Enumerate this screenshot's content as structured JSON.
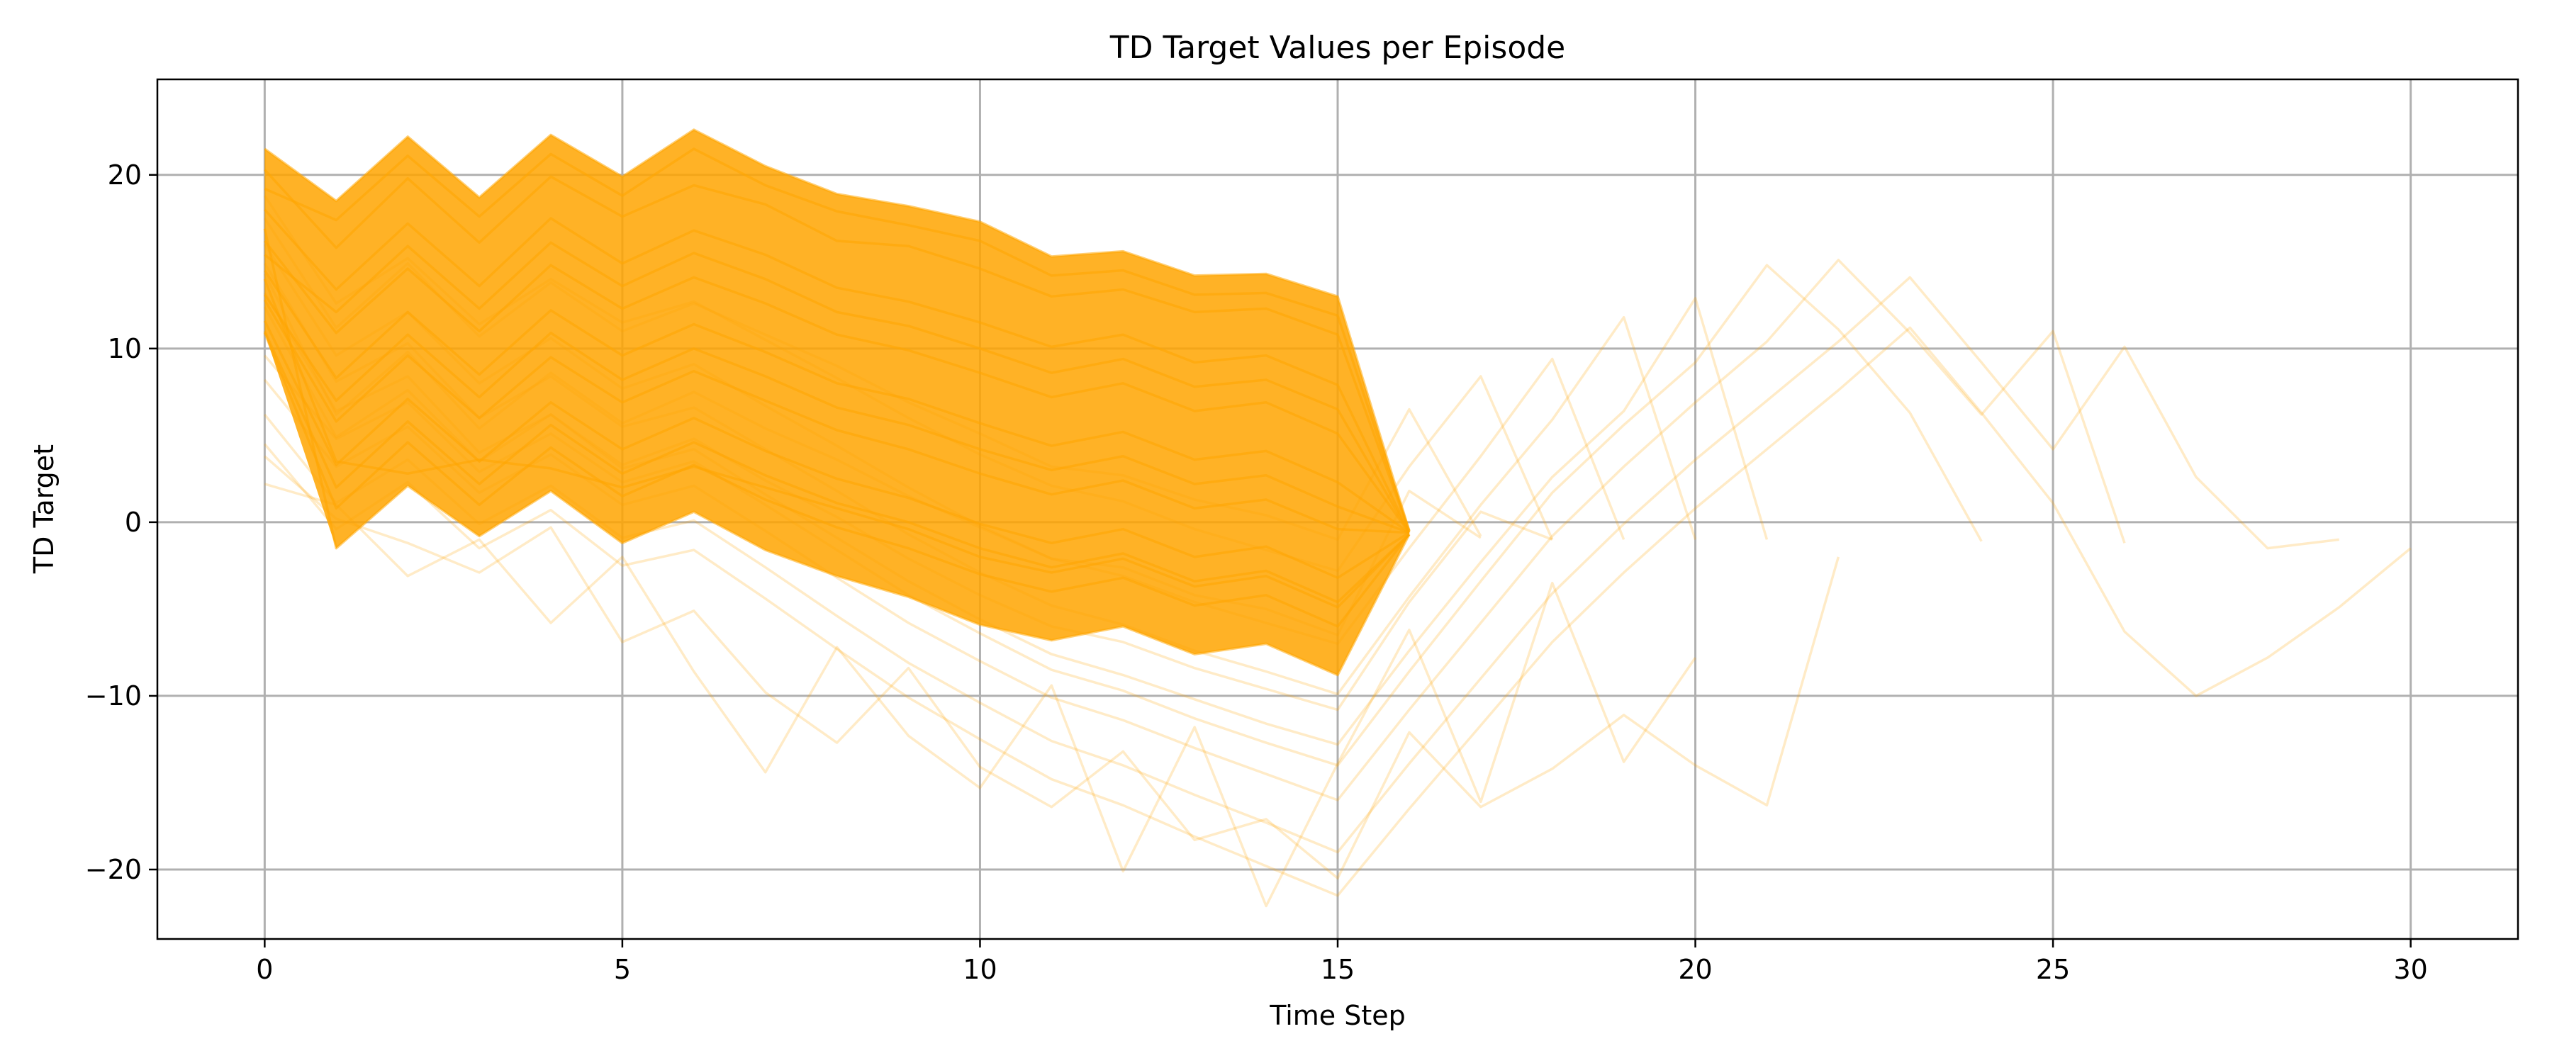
{
  "chart_data": {
    "type": "line",
    "title": "TD Target Values per Episode",
    "xlabel": "Time Step",
    "ylabel": "TD Target",
    "xlim": [
      -1.5,
      31.5
    ],
    "ylim": [
      -24,
      25.5
    ],
    "xticks": [
      0,
      5,
      10,
      15,
      20,
      25,
      30
    ],
    "yticks": [
      -20,
      -10,
      0,
      10,
      20
    ],
    "xtick_labels": [
      "0",
      "5",
      "10",
      "15",
      "20",
      "25",
      "30"
    ],
    "ytick_labels": [
      "−20",
      "−10",
      "0",
      "10",
      "20"
    ],
    "grid": true,
    "legend": "none",
    "series_color": "#FFA500",
    "series_opacity": 0.1,
    "series": [
      {
        "x": [
          0,
          1,
          2,
          3,
          4,
          5,
          6,
          7,
          8,
          9,
          10,
          11,
          12,
          13,
          14,
          15,
          16
        ],
        "y": [
          21.5,
          18.5,
          22.2,
          18.7,
          22.3,
          19.9,
          22.6,
          20.5,
          18.9,
          18.2,
          17.3,
          15.3,
          15.6,
          14.2,
          14.3,
          13.0,
          -0.5
        ]
      },
      {
        "x": [
          0,
          1,
          2,
          3,
          4,
          5,
          6,
          7,
          8,
          9,
          10,
          11,
          12,
          13,
          14,
          15,
          16
        ],
        "y": [
          20.3,
          15.8,
          19.8,
          16.1,
          19.9,
          17.6,
          19.4,
          18.3,
          16.2,
          15.9,
          14.6,
          13.0,
          13.4,
          12.1,
          12.3,
          10.8,
          -0.5
        ]
      },
      {
        "x": [
          0,
          1,
          2,
          3,
          4,
          5,
          6,
          7,
          8,
          9,
          10,
          11,
          12,
          13,
          14,
          15,
          16
        ],
        "y": [
          18.0,
          13.4,
          17.2,
          13.6,
          17.5,
          14.9,
          16.8,
          15.4,
          13.5,
          12.7,
          11.5,
          10.1,
          10.8,
          9.2,
          9.6,
          7.9,
          -0.6
        ]
      },
      {
        "x": [
          0,
          1,
          2,
          3,
          4,
          5,
          6,
          7,
          8,
          9,
          10,
          11,
          12,
          13,
          14,
          15,
          16
        ],
        "y": [
          16.2,
          10.9,
          14.6,
          11.0,
          14.8,
          12.3,
          14.1,
          12.6,
          10.8,
          9.9,
          8.6,
          7.2,
          8.0,
          6.4,
          6.9,
          5.1,
          -0.6
        ]
      },
      {
        "x": [
          0,
          1,
          2,
          3,
          4,
          5,
          6,
          7,
          8,
          9,
          10,
          11,
          12,
          13,
          14,
          15,
          16
        ],
        "y": [
          14.5,
          8.3,
          12.1,
          8.5,
          12.2,
          9.6,
          11.4,
          9.8,
          8.0,
          7.1,
          5.7,
          4.4,
          5.2,
          3.6,
          4.1,
          2.3,
          -0.6
        ]
      },
      {
        "x": [
          0,
          1,
          2,
          3,
          4,
          5,
          6,
          7,
          8,
          9,
          10,
          11,
          12,
          13,
          14,
          15,
          16
        ],
        "y": [
          12.8,
          5.8,
          9.6,
          6.0,
          9.5,
          6.9,
          8.7,
          7.0,
          5.3,
          4.2,
          2.8,
          1.6,
          2.4,
          0.8,
          1.3,
          -0.4,
          -0.6
        ]
      },
      {
        "x": [
          0,
          1,
          2,
          3,
          4,
          5,
          6,
          7,
          8,
          9,
          10,
          11,
          12,
          13,
          14,
          15,
          16
        ],
        "y": [
          11.6,
          3.3,
          7.1,
          3.5,
          6.9,
          4.2,
          6.0,
          4.1,
          2.5,
          1.4,
          -0.1,
          -1.2,
          -0.4,
          -2.0,
          -1.4,
          -3.2,
          -0.6
        ]
      },
      {
        "x": [
          0,
          1,
          2,
          3,
          4,
          5,
          6,
          7,
          8,
          9,
          10,
          11,
          12,
          13,
          14,
          15,
          16
        ],
        "y": [
          10.9,
          0.8,
          4.6,
          1.0,
          4.3,
          1.5,
          3.3,
          1.3,
          -0.3,
          -1.5,
          -3.0,
          -4.0,
          -3.2,
          -4.8,
          -4.2,
          -6.0,
          -0.7
        ]
      },
      {
        "x": [
          0,
          1,
          2,
          3,
          4,
          5,
          6,
          7,
          8,
          9,
          10,
          11,
          12,
          13,
          14,
          15,
          16
        ],
        "y": [
          16.9,
          -1.5,
          2.1,
          -0.8,
          1.8,
          -1.2,
          0.6,
          -1.6,
          -3.1,
          -4.3,
          -5.9,
          -6.8,
          -6.0,
          -7.6,
          -7.0,
          -8.8,
          -0.7
        ]
      },
      {
        "x": [
          0,
          1,
          2,
          3,
          4,
          5,
          6,
          7,
          8,
          9,
          10,
          11,
          12,
          13,
          14,
          15,
          16
        ],
        "y": [
          14.0,
          3.5,
          2.8,
          3.6,
          3.1,
          2.0,
          3.2,
          2.0,
          0.8,
          -0.4,
          -2.0,
          -2.9,
          -2.1,
          -3.7,
          -3.1,
          -4.9,
          -0.7
        ]
      },
      {
        "x": [
          0,
          1,
          2,
          3,
          4,
          5,
          6,
          7,
          8,
          9,
          10,
          11,
          12,
          13,
          14,
          15,
          16
        ],
        "y": [
          19.2,
          17.4,
          21.1,
          17.6,
          21.2,
          18.8,
          21.5,
          19.4,
          17.9,
          17.1,
          16.2,
          14.2,
          14.5,
          13.1,
          13.2,
          11.9,
          -0.5
        ]
      },
      {
        "x": [
          0,
          1,
          2,
          3,
          4,
          5,
          6,
          7,
          8,
          9,
          10,
          11,
          12,
          13,
          14,
          15,
          16
        ],
        "y": [
          15.4,
          12.1,
          15.9,
          12.3,
          16.1,
          13.6,
          15.5,
          14.0,
          12.1,
          11.3,
          10.0,
          8.6,
          9.4,
          7.8,
          8.2,
          6.5,
          -0.6
        ]
      },
      {
        "x": [
          0,
          1,
          2,
          3,
          4,
          5,
          6,
          7,
          8,
          9,
          10,
          11,
          12,
          13,
          14,
          15,
          16
        ],
        "y": [
          13.1,
          7.0,
          10.8,
          7.2,
          10.9,
          8.2,
          10.0,
          8.4,
          6.6,
          5.6,
          4.2,
          3.0,
          3.8,
          2.2,
          2.7,
          0.9,
          -0.6
        ]
      },
      {
        "x": [
          0,
          1,
          2,
          3,
          4,
          5,
          6,
          7,
          8,
          9,
          10,
          11,
          12,
          13,
          14,
          15,
          16
        ],
        "y": [
          11.0,
          2.0,
          5.8,
          2.2,
          5.6,
          2.8,
          4.6,
          2.7,
          1.1,
          0.0,
          -1.5,
          -2.6,
          -1.8,
          -3.4,
          -2.8,
          -4.6,
          -0.7
        ]
      },
      {
        "x": [
          0,
          1,
          2,
          3,
          4,
          5,
          6,
          7,
          8,
          9,
          10,
          11,
          12,
          13,
          14,
          15,
          16,
          17
        ],
        "y": [
          17.5,
          11.2,
          14.9,
          10.7,
          13.8,
          11.0,
          12.6,
          10.8,
          9.0,
          6.9,
          5.1,
          3.2,
          2.7,
          1.3,
          0.4,
          -1.0,
          6.5,
          -0.8
        ]
      },
      {
        "x": [
          0,
          1,
          2,
          3,
          4,
          5,
          6,
          7,
          8,
          9,
          10,
          11,
          12,
          13,
          14,
          15,
          16,
          17
        ],
        "y": [
          14.3,
          6.2,
          9.8,
          5.4,
          8.6,
          5.7,
          7.5,
          5.4,
          3.6,
          1.5,
          -0.3,
          -2.1,
          -2.6,
          -4.2,
          -5.0,
          -6.5,
          1.8,
          -0.9
        ]
      },
      {
        "x": [
          0,
          1,
          2,
          3,
          4,
          5,
          6,
          7,
          8,
          9,
          10,
          11,
          12,
          13,
          14,
          15,
          16,
          17,
          18
        ],
        "y": [
          18.8,
          12.6,
          15.2,
          11.4,
          14.0,
          11.5,
          12.7,
          10.5,
          8.3,
          6.0,
          3.9,
          2.1,
          1.2,
          -0.4,
          -1.6,
          -2.8,
          3.2,
          8.4,
          -1.0
        ]
      },
      {
        "x": [
          0,
          1,
          2,
          3,
          4,
          5,
          6,
          7,
          8,
          9,
          10,
          11,
          12,
          13,
          14,
          15,
          16,
          17,
          18
        ],
        "y": [
          12.4,
          4.9,
          7.6,
          3.5,
          6.2,
          3.3,
          4.8,
          2.4,
          0.3,
          -2.1,
          -4.2,
          -6.0,
          -6.9,
          -8.4,
          -9.6,
          -10.8,
          -4.6,
          0.6,
          -1.0
        ]
      },
      {
        "x": [
          0,
          1,
          2,
          3,
          4,
          5,
          6,
          7,
          8,
          9,
          10,
          11,
          12,
          13,
          14,
          15,
          16,
          17,
          18,
          19
        ],
        "y": [
          16.0,
          9.6,
          12.1,
          8.0,
          10.6,
          7.7,
          9.1,
          6.7,
          4.4,
          2.0,
          -0.2,
          -2.1,
          -3.1,
          -4.6,
          -5.8,
          -7.0,
          -1.5,
          3.8,
          9.4,
          -1.0
        ]
      },
      {
        "x": [
          0,
          1,
          2,
          3,
          4,
          5,
          6,
          7,
          8,
          9,
          10,
          11,
          12,
          13,
          14,
          15,
          16,
          17,
          18,
          19,
          20
        ],
        "y": [
          14.9,
          8.1,
          10.3,
          6.0,
          8.4,
          5.5,
          6.6,
          4.2,
          1.8,
          -0.7,
          -2.9,
          -4.8,
          -5.9,
          -7.4,
          -8.6,
          -9.9,
          -4.3,
          1.0,
          5.9,
          11.8,
          -1.0
        ]
      },
      {
        "x": [
          0,
          1,
          2,
          3,
          4,
          5,
          6,
          7,
          8,
          9,
          10,
          11,
          12,
          13,
          14,
          15,
          16,
          17,
          18,
          19,
          20,
          21
        ],
        "y": [
          13.2,
          6.4,
          8.4,
          4.0,
          6.2,
          3.1,
          4.2,
          1.6,
          -0.9,
          -3.4,
          -5.6,
          -7.6,
          -8.8,
          -10.2,
          -11.6,
          -12.8,
          -7.4,
          -2.3,
          2.6,
          6.4,
          12.9,
          -1.0
        ]
      },
      {
        "x": [
          0,
          1,
          2,
          3,
          4,
          5,
          6,
          7,
          8,
          9,
          10,
          11,
          12,
          13,
          14,
          15,
          16,
          17,
          18,
          19,
          20,
          21,
          22,
          23,
          24
        ],
        "y": [
          9.6,
          4.8,
          6.9,
          2.9,
          5.1,
          2.3,
          3.5,
          1.0,
          -1.6,
          -4.2,
          -6.4,
          -8.5,
          -9.7,
          -11.3,
          -12.7,
          -14.0,
          -8.6,
          -3.4,
          1.7,
          5.6,
          9.2,
          14.8,
          11.1,
          6.3,
          -1.1
        ]
      },
      {
        "x": [
          0,
          1,
          2,
          3,
          4,
          5,
          6,
          7,
          8,
          9,
          10,
          11,
          12,
          13,
          14,
          15,
          16,
          17,
          18,
          19,
          20,
          21,
          22,
          23,
          24,
          25,
          26
        ],
        "y": [
          8.2,
          3.2,
          5.5,
          1.7,
          3.9,
          1.0,
          2.1,
          -0.5,
          -3.2,
          -5.8,
          -8.0,
          -10.1,
          -11.4,
          -13.0,
          -14.5,
          -16.0,
          -10.8,
          -5.8,
          -0.8,
          3.2,
          6.9,
          10.4,
          15.1,
          10.9,
          6.2,
          11.0,
          -1.2
        ]
      },
      {
        "x": [
          0,
          1,
          2,
          3,
          4,
          5,
          6,
          7,
          8,
          9,
          10,
          11,
          12,
          13,
          14,
          15,
          16,
          17,
          18,
          19,
          20,
          21,
          22,
          23,
          24,
          25,
          26,
          27,
          28,
          29
        ],
        "y": [
          6.2,
          1.1,
          3.6,
          -0.1,
          2.1,
          -0.9,
          0.1,
          -2.6,
          -5.4,
          -8.1,
          -10.4,
          -12.6,
          -14.0,
          -15.7,
          -17.3,
          -19.0,
          -13.9,
          -9.0,
          -4.1,
          -0.1,
          3.6,
          7.0,
          10.4,
          14.1,
          9.2,
          4.2,
          10.1,
          2.6,
          -1.5,
          -1.0
        ]
      },
      {
        "x": [
          0,
          1,
          2,
          3,
          4,
          5,
          6,
          7,
          8,
          9,
          10,
          11,
          12,
          13,
          14,
          15,
          16,
          17,
          18,
          19,
          20,
          21,
          22,
          23,
          24,
          25,
          26,
          27,
          28,
          29,
          30
        ],
        "y": [
          4.5,
          -0.4,
          2.3,
          -1.5,
          0.7,
          -2.5,
          -1.6,
          -4.4,
          -7.3,
          -10.1,
          -12.5,
          -14.8,
          -16.3,
          -18.1,
          -19.8,
          -21.5,
          -16.5,
          -11.7,
          -6.9,
          -2.9,
          0.8,
          4.2,
          7.6,
          11.2,
          6.3,
          1.1,
          -6.3,
          -10.0,
          -7.8,
          -4.9,
          -1.5
        ]
      },
      {
        "x": [
          0,
          1,
          2,
          3,
          4,
          5,
          6,
          7,
          8,
          9,
          10,
          11,
          12,
          13,
          14,
          15,
          16,
          17,
          18,
          19,
          20
        ],
        "y": [
          2.2,
          1.0,
          -3.1,
          -1.0,
          -5.8,
          -2.0,
          -8.6,
          -14.4,
          -7.2,
          -12.3,
          -15.3,
          -9.4,
          -20.1,
          -11.8,
          -22.1,
          -13.9,
          -6.2,
          -16.1,
          -3.5,
          -13.8,
          -7.8
        ]
      },
      {
        "x": [
          0,
          1,
          2,
          3,
          4,
          5,
          6,
          7,
          8,
          9,
          10,
          11,
          12,
          13,
          14,
          15,
          16,
          17,
          18,
          19,
          20,
          21,
          22
        ],
        "y": [
          3.8,
          0.2,
          -1.2,
          -2.9,
          -0.3,
          -6.9,
          -5.1,
          -9.8,
          -12.7,
          -8.4,
          -14.1,
          -16.4,
          -13.2,
          -18.3,
          -17.1,
          -20.5,
          -12.1,
          -16.4,
          -14.2,
          -11.1,
          -14.0,
          -16.3,
          -2.0
        ]
      }
    ]
  }
}
